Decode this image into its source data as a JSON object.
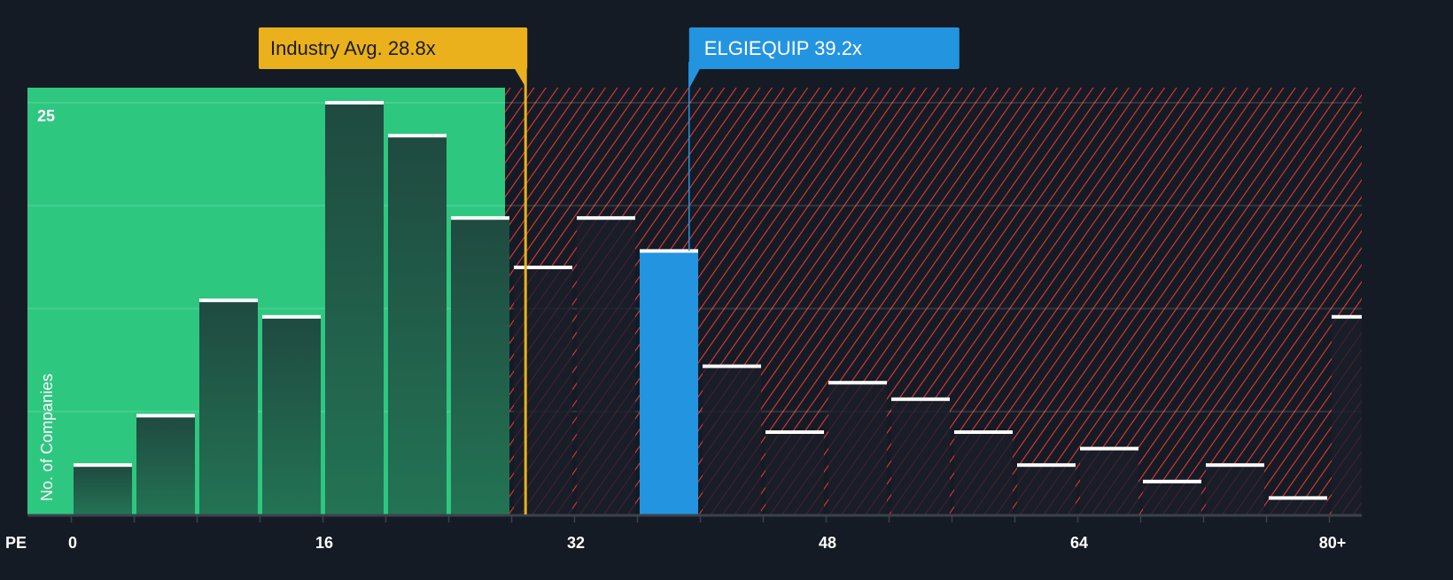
{
  "chart_data": {
    "type": "bar",
    "title": "",
    "xlabel": "PE",
    "ylabel": "No. of Companies",
    "x_tick_labels": [
      "0",
      "16",
      "32",
      "48",
      "64",
      "80+"
    ],
    "x_ticks": [
      0,
      16,
      32,
      48,
      64,
      80
    ],
    "y_tick_labels": [
      "25"
    ],
    "y_ticks": [
      25
    ],
    "ylim": [
      0,
      25.9
    ],
    "xlim": [
      -2.9,
      82
    ],
    "bin_width": 4,
    "bin_starts": [
      0,
      4,
      8,
      12,
      16,
      20,
      24,
      28,
      32,
      36,
      40,
      44,
      48,
      52,
      56,
      60,
      64,
      68,
      72,
      76,
      80
    ],
    "values": [
      3,
      6,
      13,
      12,
      25,
      23,
      18,
      15,
      18,
      16,
      9,
      5,
      8,
      7,
      5,
      3,
      4,
      2,
      3,
      1,
      12
    ],
    "highlight_bin_start": 36,
    "fair_region_end": 27.5,
    "industry_avg": {
      "label": "Industry Avg. 28.8x",
      "value": 28.8
    },
    "company": {
      "label": "ELGIEQUIP 39.2x",
      "value": 39.2
    },
    "colors": {
      "background": "#151b24",
      "fair_zone": "#2ec780",
      "overvalued_hatch": "#e0393e",
      "industry": "#eab11c",
      "company": "#2394e0",
      "bar_top": "#ffffff"
    },
    "grid": true
  }
}
